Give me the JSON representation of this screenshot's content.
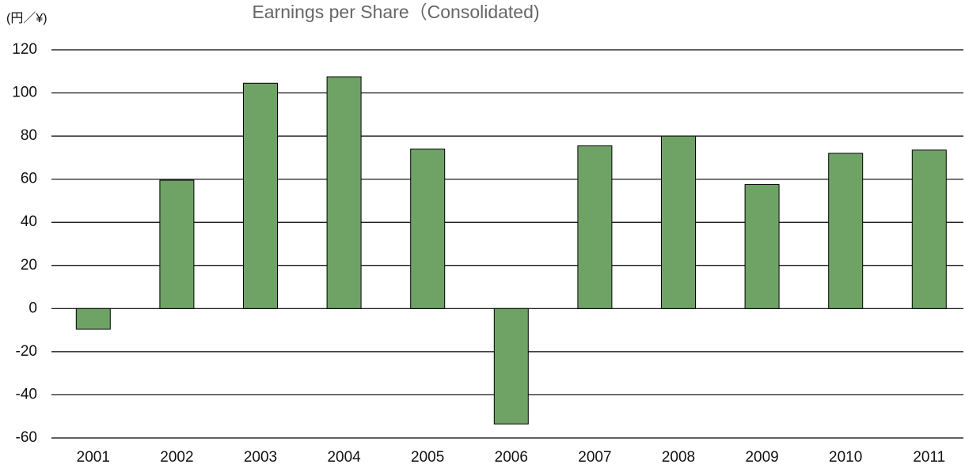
{
  "chart_data": {
    "type": "bar",
    "title": "Earnings per Share（Consolidated)",
    "y_unit": "(円／¥)",
    "categories": [
      "2001",
      "2002",
      "2003",
      "2004",
      "2005",
      "2006",
      "2007",
      "2008",
      "2009",
      "2010",
      "2011"
    ],
    "values": [
      -9.5,
      59.5,
      104.5,
      107.5,
      74,
      -53.5,
      75.5,
      80,
      57.5,
      72,
      73.5
    ],
    "color": "#6fa366",
    "ylim": [
      -60,
      120
    ],
    "yticks": [
      -60,
      -40,
      -20,
      0,
      20,
      40,
      60,
      80,
      100,
      120
    ],
    "grid": true
  }
}
